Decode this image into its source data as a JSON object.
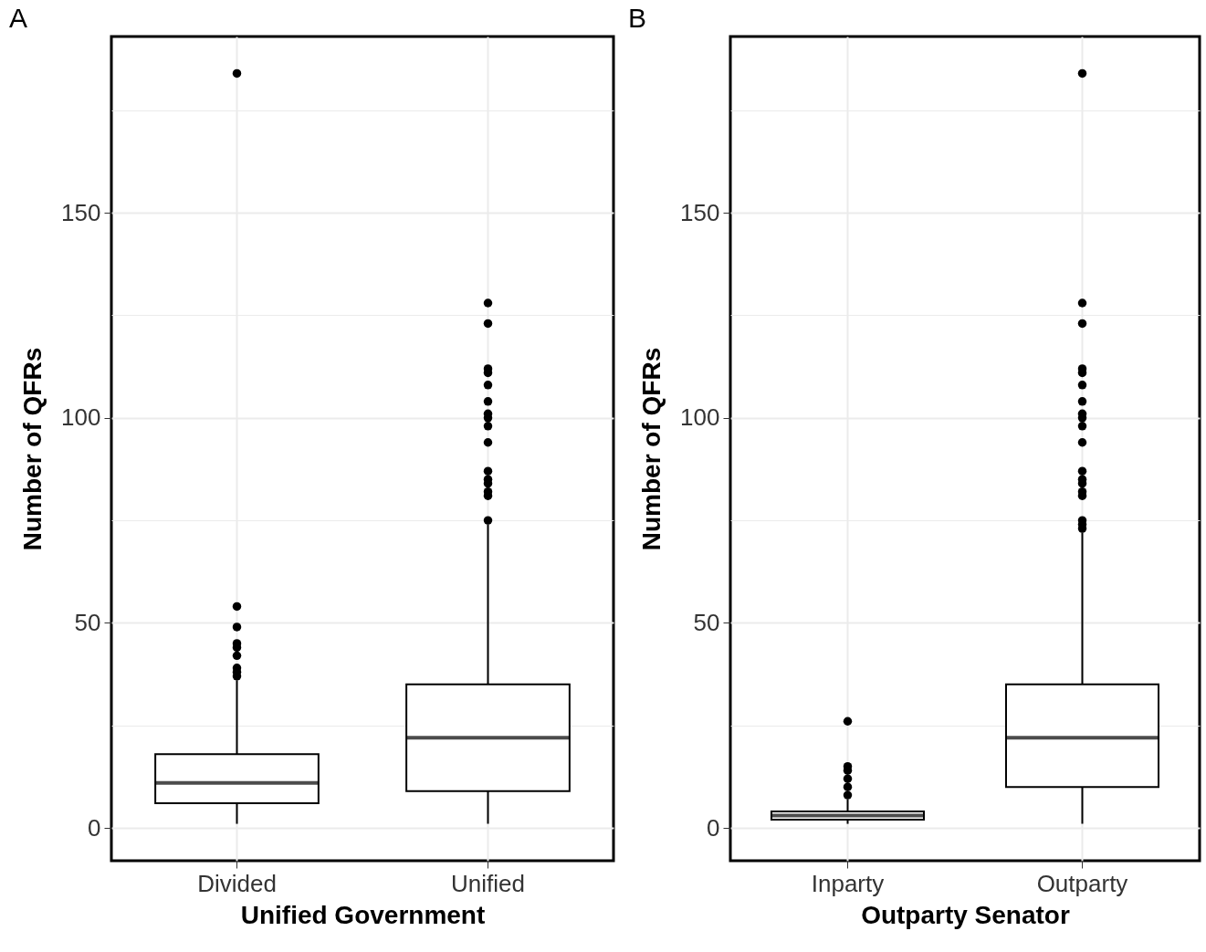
{
  "chart_data": [
    {
      "type": "box",
      "title": "A",
      "xlabel": "Unified Government",
      "ylabel": "Number of QFRs",
      "categories": [
        "Divided",
        "Unified"
      ],
      "boxes": [
        {
          "low": 1,
          "q1": 6,
          "median": 11,
          "q3": 18,
          "high": 36,
          "outliers": [
            37,
            38,
            39,
            42,
            44,
            45,
            49,
            54,
            184
          ]
        },
        {
          "low": 1,
          "q1": 9,
          "median": 22,
          "q3": 35,
          "high": 74,
          "outliers": [
            75,
            81,
            82,
            84,
            85,
            87,
            94,
            98,
            100,
            101,
            104,
            108,
            111,
            112,
            123,
            128
          ]
        }
      ],
      "ylim": [
        -8,
        193
      ],
      "yticks": [
        0,
        {
          "value": 25,
          "label": null
        },
        50,
        {
          "value": 75,
          "label": null
        },
        100,
        {
          "value": 125,
          "label": null
        },
        150,
        {
          "value": 175,
          "label": null
        }
      ],
      "grid": true
    },
    {
      "type": "box",
      "title": "B",
      "xlabel": "Outparty Senator",
      "ylabel": "Number of QFRs",
      "categories": [
        "Inparty",
        "Outparty"
      ],
      "boxes": [
        {
          "low": 1,
          "q1": 2,
          "median": 3,
          "q3": 4,
          "high": 7,
          "outliers": [
            8,
            10,
            12,
            14,
            15,
            26
          ]
        },
        {
          "low": 1,
          "q1": 10,
          "median": 22,
          "q3": 35,
          "high": 72,
          "outliers": [
            73,
            74,
            75,
            81,
            82,
            84,
            85,
            87,
            94,
            98,
            100,
            101,
            104,
            108,
            111,
            112,
            123,
            128,
            184
          ]
        }
      ],
      "ylim": [
        -8,
        193
      ],
      "yticks": [
        0,
        {
          "value": 25,
          "label": null
        },
        50,
        {
          "value": 75,
          "label": null
        },
        100,
        {
          "value": 125,
          "label": null
        },
        150,
        {
          "value": 175,
          "label": null
        }
      ],
      "grid": true
    }
  ]
}
